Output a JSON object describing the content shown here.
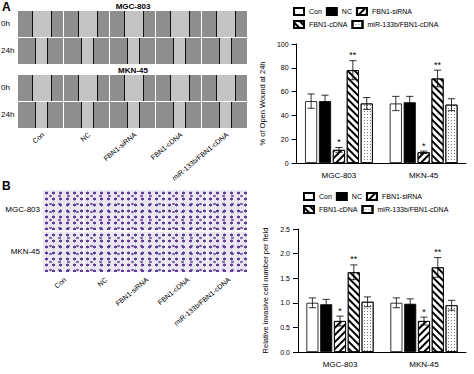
{
  "figure": {
    "panels": [
      {
        "letter": "A",
        "groups": [
          {
            "name": "MGC-803",
            "rows": [
              "0h",
              "24h"
            ]
          },
          {
            "name": "MKN-45",
            "rows": [
              "0h",
              "24h"
            ]
          }
        ],
        "columns": [
          "Con",
          "NC",
          "FBN1-siRNA",
          "FBN1-cDNA",
          "miR-133b/FBN1-cDNA"
        ]
      },
      {
        "letter": "B",
        "rows": [
          "MGC-803",
          "MKN-45"
        ],
        "columns": [
          "Con",
          "NC",
          "FBN1-siRNA",
          "FBN1-cDNA",
          "miR-133b/FBN1-cDNA"
        ]
      }
    ]
  },
  "chart_data": [
    {
      "type": "bar",
      "y_label": "% of Open Wound at 24h",
      "categories": [
        "MGC-803",
        "MKN-45"
      ],
      "series": [
        {
          "name": "Con",
          "color": "#ffffff",
          "values": [
            52,
            50
          ],
          "errors": [
            6,
            6
          ],
          "annotations": [
            null,
            null
          ]
        },
        {
          "name": "NC",
          "color": "#000000",
          "values": [
            52,
            51
          ],
          "errors": [
            5,
            5
          ],
          "annotations": [
            null,
            null
          ]
        },
        {
          "name": "FBN1-siRNA",
          "color": "#ffffff",
          "values": [
            11,
            9
          ],
          "errors": [
            2,
            1
          ],
          "annotations": [
            "*",
            "*"
          ]
        },
        {
          "name": "FBN1-cDNA",
          "color": "#ffffff",
          "values": [
            78,
            71
          ],
          "errors": [
            8,
            7
          ],
          "annotations": [
            "**",
            "**"
          ]
        },
        {
          "name": "miR-133b/FBN1-cDNA",
          "color": "#ffffff",
          "values": [
            50,
            49
          ],
          "errors": [
            5,
            5
          ],
          "annotations": [
            null,
            null
          ]
        }
      ],
      "ylim": [
        0,
        100
      ],
      "yticks": [
        0,
        20,
        40,
        60,
        80,
        100
      ],
      "grid": false,
      "legend": "top"
    },
    {
      "type": "bar",
      "y_label": "Relative invasive cell number per field",
      "categories": [
        "MGC-803",
        "MKN-45"
      ],
      "series": [
        {
          "name": "Con",
          "color": "#ffffff",
          "values": [
            1.0,
            1.0
          ],
          "errors": [
            0.1,
            0.1
          ],
          "annotations": [
            null,
            null
          ]
        },
        {
          "name": "NC",
          "color": "#000000",
          "values": [
            0.97,
            0.98
          ],
          "errors": [
            0.1,
            0.1
          ],
          "annotations": [
            null,
            null
          ]
        },
        {
          "name": "FBN1-siRNA",
          "color": "#ffffff",
          "values": [
            0.63,
            0.63
          ],
          "errors": [
            0.1,
            0.08
          ],
          "annotations": [
            "*",
            "*"
          ]
        },
        {
          "name": "FBN1-cDNA",
          "color": "#ffffff",
          "values": [
            1.62,
            1.72
          ],
          "errors": [
            0.15,
            0.2
          ],
          "annotations": [
            "**",
            "**"
          ]
        },
        {
          "name": "miR-133b/FBN1-cDNA",
          "color": "#ffffff",
          "values": [
            1.02,
            0.95
          ],
          "errors": [
            0.1,
            0.1
          ],
          "annotations": [
            null,
            null
          ]
        }
      ],
      "ylim": [
        0,
        2.5
      ],
      "yticks": [
        {
          "value": 0,
          "label": "0.0"
        },
        {
          "value": 0.5,
          "label": "0.5"
        },
        {
          "value": 1,
          "label": "1.0"
        },
        {
          "value": 1.5,
          "label": "1.5"
        },
        {
          "value": 2,
          "label": "2.0"
        },
        {
          "value": 2.5,
          "label": "2.5"
        }
      ],
      "grid": false,
      "legend": "top"
    }
  ]
}
